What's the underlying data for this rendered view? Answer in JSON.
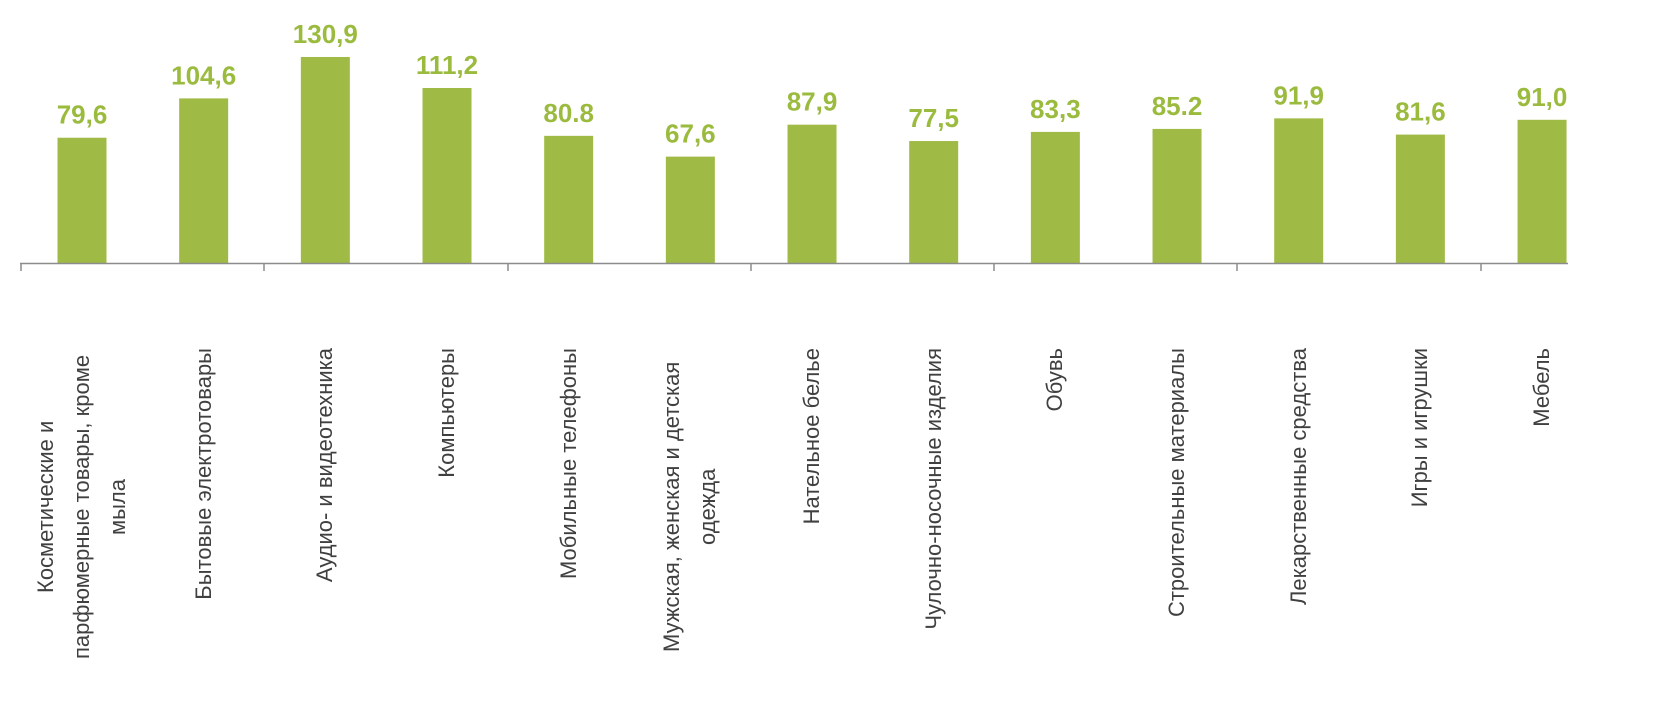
{
  "chart_data": {
    "type": "bar",
    "categories": [
      "Косметические и парфюмерные товары, кроме мыла",
      "Бытовые электротовары",
      "Аудио- и видеотехника",
      "Компьютеры",
      "Мобильные телефоны",
      "Мужская, женская и детская одежда",
      "Нательное белье",
      "Чулочно-носочные изделия",
      "Обувь",
      "Строительные материалы",
      "Лекарственные средства",
      "Игры и игрушки",
      "Мебель"
    ],
    "values": [
      79.6,
      104.6,
      130.9,
      111.2,
      80.8,
      67.6,
      87.9,
      77.5,
      83.3,
      85.2,
      91.9,
      81.6,
      91.0
    ],
    "value_labels": [
      "79,6",
      "104,6",
      "130,9",
      "111,2",
      "80.8",
      "67,6",
      "87,9",
      "77,5",
      "83,3",
      "85.2",
      "91,9",
      "81,6",
      "91,0"
    ],
    "color": "#9fbb45"
  }
}
